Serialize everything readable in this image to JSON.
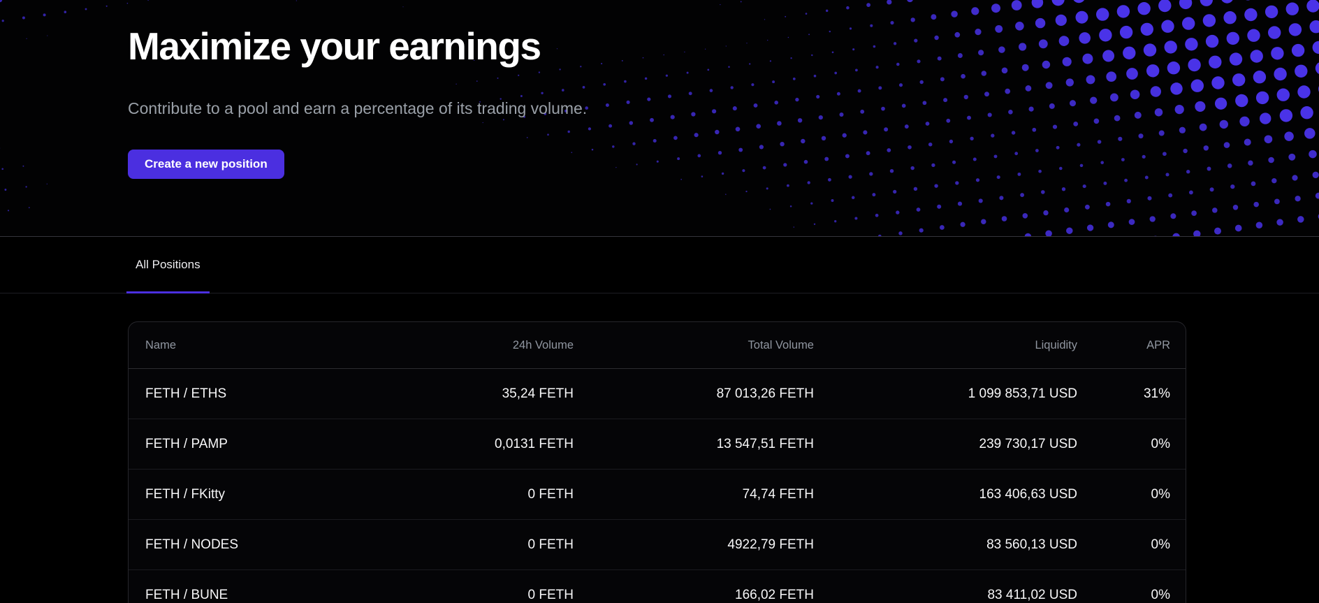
{
  "hero": {
    "title": "Maximize your earnings",
    "subtitle": "Contribute to a pool and earn a percentage of its trading volume.",
    "cta_label": "Create a new position",
    "accent_color": "#4b2fe0",
    "dot_pattern_color": "#4a33e8"
  },
  "tabs": [
    {
      "label": "All Positions",
      "active": true
    }
  ],
  "positions_table": {
    "columns": [
      "Name",
      "24h Volume",
      "Total Volume",
      "Liquidity",
      "APR"
    ],
    "rows": [
      {
        "name": "FETH / ETHS",
        "volume_24h": "35,24 FETH",
        "total_volume": "87 013,26 FETH",
        "liquidity": "1 099 853,71 USD",
        "apr": "31%"
      },
      {
        "name": "FETH / PAMP",
        "volume_24h": "0,0131 FETH",
        "total_volume": "13 547,51 FETH",
        "liquidity": "239 730,17 USD",
        "apr": "0%"
      },
      {
        "name": "FETH / FKitty",
        "volume_24h": "0 FETH",
        "total_volume": "74,74 FETH",
        "liquidity": "163 406,63 USD",
        "apr": "0%"
      },
      {
        "name": "FETH / NODES",
        "volume_24h": "0 FETH",
        "total_volume": "4922,79 FETH",
        "liquidity": "83 560,13 USD",
        "apr": "0%"
      },
      {
        "name": "FETH / BUNE",
        "volume_24h": "0 FETH",
        "total_volume": "166,02 FETH",
        "liquidity": "83 411,02 USD",
        "apr": "0%"
      }
    ]
  }
}
